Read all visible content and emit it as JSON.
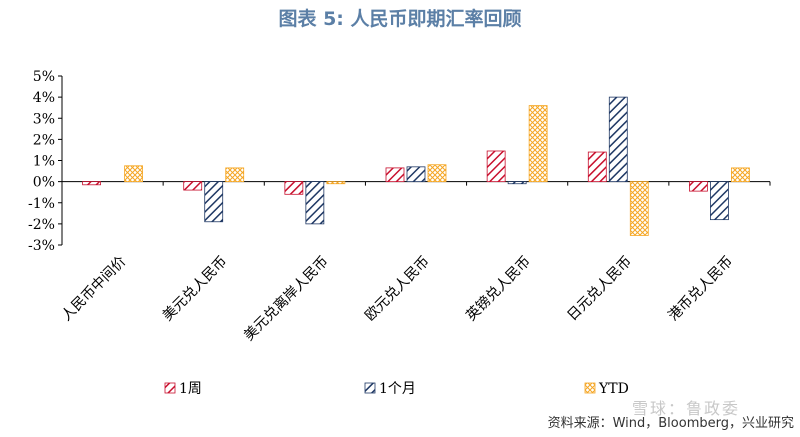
{
  "title": "图表 5: 人民币即期汇率回顾",
  "source": "资料来源：Wind，Bloomberg，兴业研究",
  "watermark": "雪球：鲁政委",
  "colors": {
    "series1": "#c8102e",
    "series2": "#1f3864",
    "series3": "#f5a623",
    "axis": "#000000"
  },
  "chart_data": {
    "type": "bar",
    "categories": [
      "人民币中间价",
      "美元兑人民币",
      "美元兑离岸人民币",
      "欧元兑人民币",
      "英镑兑人民币",
      "日元兑人民币",
      "港币兑人民币"
    ],
    "series": [
      {
        "name": "1周",
        "values": [
          -0.15,
          -0.4,
          -0.6,
          0.65,
          1.45,
          1.4,
          -0.45
        ],
        "pattern": "diagonal-red"
      },
      {
        "name": "1个月",
        "values": [
          null,
          -1.9,
          -2.0,
          0.7,
          -0.1,
          4.0,
          -1.8
        ],
        "pattern": "diagonal-navy"
      },
      {
        "name": "YTD",
        "values": [
          0.75,
          0.65,
          -0.1,
          0.8,
          3.6,
          -2.55,
          0.65
        ],
        "pattern": "crosshatch-orange"
      }
    ],
    "yticks": [
      "5%",
      "4%",
      "3%",
      "2%",
      "1%",
      "0%",
      "-1%",
      "-2%",
      "-3%"
    ],
    "ylim": [
      -3,
      5
    ],
    "legend_position": "bottom"
  }
}
